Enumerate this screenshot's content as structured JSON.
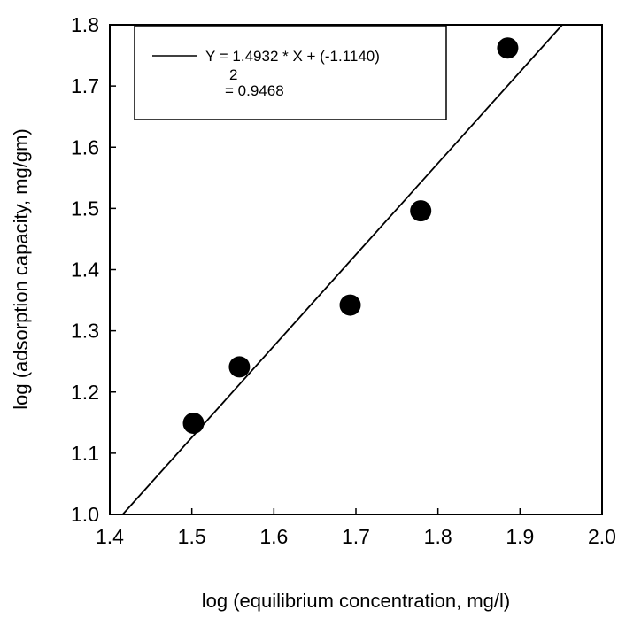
{
  "chart_data": {
    "type": "scatter",
    "xlabel": "log (equilibrium concentration, mg/l)",
    "ylabel": "log (adsorption capacity, mg/gm)",
    "xlim": [
      1.4,
      2.0
    ],
    "ylim": [
      1.0,
      1.8
    ],
    "x_ticks": [
      "1.4",
      "1.5",
      "1.6",
      "1.7",
      "1.8",
      "1.9",
      "2.0"
    ],
    "y_ticks": [
      "1.0",
      "1.1",
      "1.2",
      "1.3",
      "1.4",
      "1.5",
      "1.6",
      "1.7",
      "1.8"
    ],
    "grid": false,
    "points": [
      {
        "x": 1.502,
        "y": 1.149
      },
      {
        "x": 1.558,
        "y": 1.241
      },
      {
        "x": 1.693,
        "y": 1.342
      },
      {
        "x": 1.779,
        "y": 1.496
      },
      {
        "x": 1.885,
        "y": 1.762
      }
    ],
    "fit_line": {
      "slope": 1.4932,
      "intercept": -1.114
    },
    "legend": {
      "position": "top-left",
      "equation": "Y = 1.4932 * X + (-1.1140)",
      "r2_superscript": "2",
      "r2_value": "= 0.9468"
    }
  }
}
